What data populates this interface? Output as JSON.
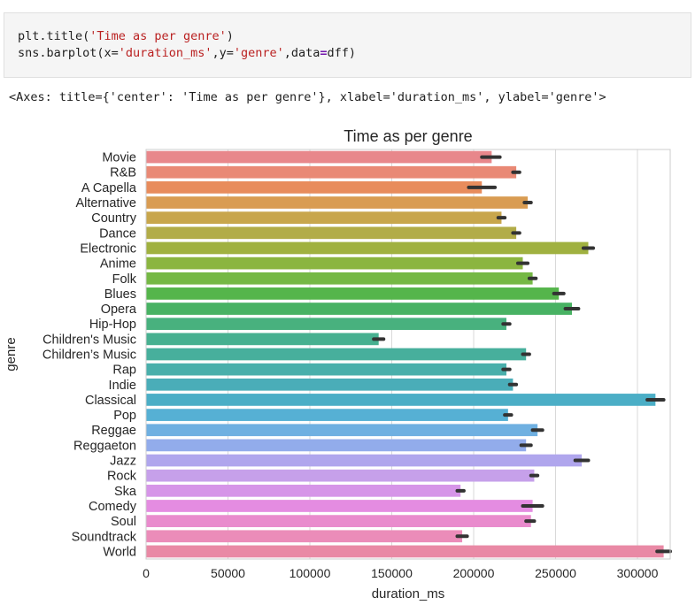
{
  "cell": {
    "code_line1_fn": "plt.title(",
    "code_line1_str": "'Time as per genre'",
    "code_line1_end": ")",
    "code_line2_a": "sns.barplot(x=",
    "code_line2_str1": "'duration_ms'",
    "code_line2_b": ",y=",
    "code_line2_str2": "'genre'",
    "code_line2_c": ",data",
    "code_line2_eq": "=",
    "code_line2_d": "dff)",
    "output_text": "<Axes: title={'center': 'Time as per genre'}, xlabel='duration_ms', ylabel='genre'>"
  },
  "chart_data": {
    "type": "bar",
    "orientation": "horizontal",
    "title": "Time as per genre",
    "xlabel": "duration_ms",
    "ylabel": "genre",
    "xlim": [
      0,
      320000
    ],
    "xticks": [
      0,
      50000,
      100000,
      150000,
      200000,
      250000,
      300000
    ],
    "xtick_labels": [
      "0",
      "50000",
      "100000",
      "150000",
      "200000",
      "250000",
      "300000"
    ],
    "grid": "vertical",
    "categories": [
      "Movie",
      "R&B",
      "A Capella",
      "Alternative",
      "Country",
      "Dance",
      "Electronic",
      "Anime",
      "Folk",
      "Blues",
      "Opera",
      "Hip-Hop",
      "Children's Music",
      "Children’s Music",
      "Rap",
      "Indie",
      "Classical",
      "Pop",
      "Reggae",
      "Reggaeton",
      "Jazz",
      "Rock",
      "Ska",
      "Comedy",
      "Soul",
      "Soundtrack",
      "World"
    ],
    "values": [
      211000,
      226000,
      205000,
      233000,
      217000,
      226000,
      270000,
      230000,
      236000,
      252000,
      260000,
      220000,
      142000,
      232000,
      220000,
      224000,
      311000,
      221000,
      239000,
      232000,
      266000,
      237000,
      192000,
      236000,
      235000,
      193000,
      316000
    ],
    "ci_low": [
      205000,
      224000,
      197000,
      231000,
      215000,
      224000,
      267000,
      227000,
      234000,
      249000,
      256000,
      218000,
      139000,
      230000,
      218000,
      222000,
      306000,
      219000,
      236000,
      229000,
      262000,
      235000,
      190000,
      230000,
      232000,
      190000,
      312000
    ],
    "ci_high": [
      216000,
      228000,
      213000,
      235000,
      219000,
      228000,
      273000,
      233000,
      238000,
      255000,
      264000,
      222000,
      145000,
      234000,
      222000,
      226000,
      316000,
      223000,
      242000,
      235000,
      270000,
      239000,
      194000,
      242000,
      237000,
      196000,
      320000
    ],
    "colors": [
      "#e8878b",
      "#e98975",
      "#e88c5c",
      "#d99c52",
      "#c8a64c",
      "#b2ac48",
      "#a0b140",
      "#8bb540",
      "#75b845",
      "#55b54b",
      "#48b263",
      "#48b17e",
      "#47b090",
      "#47af9c",
      "#49afab",
      "#4aadb8",
      "#4baec6",
      "#56b0d4",
      "#6fb0e1",
      "#92aceb",
      "#b0a6ed",
      "#c6a0ea",
      "#d695e8",
      "#e48ce1",
      "#e98bcd",
      "#eb8cb9",
      "#e989a5"
    ],
    "ci_color": "#333333"
  }
}
